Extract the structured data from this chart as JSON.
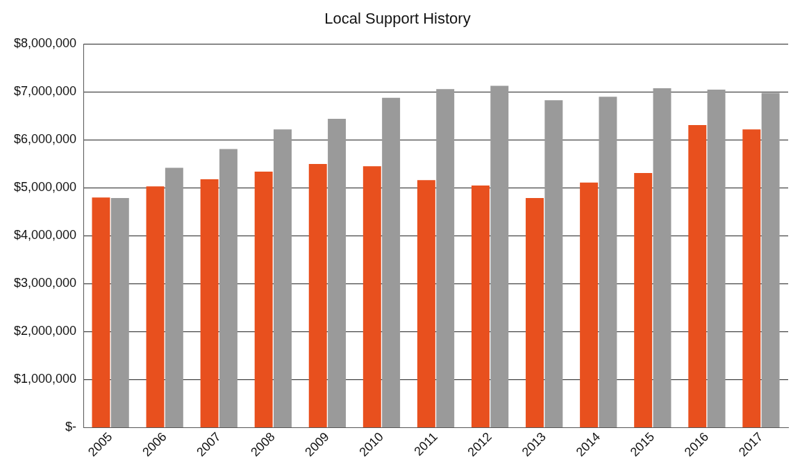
{
  "chart_data": {
    "type": "bar",
    "title": "Local Support History",
    "categories": [
      "2005",
      "2006",
      "2007",
      "2008",
      "2009",
      "2010",
      "2011",
      "2012",
      "2013",
      "2014",
      "2015",
      "2016",
      "2017"
    ],
    "series": [
      {
        "color": "#e8501e",
        "values": [
          4800000,
          5030000,
          5180000,
          5340000,
          5500000,
          5450000,
          5160000,
          5050000,
          4790000,
          5110000,
          5310000,
          6310000,
          6220000
        ]
      },
      {
        "color": "#9a9a9a",
        "values": [
          4790000,
          5420000,
          5810000,
          6220000,
          6440000,
          6880000,
          7060000,
          7130000,
          6830000,
          6900000,
          7080000,
          7050000,
          6980000
        ]
      }
    ],
    "ylim": [
      0,
      8000000
    ],
    "yticks": [
      {
        "value": 0,
        "label": "$-"
      },
      {
        "value": 1000000,
        "label": "$1,000,000"
      },
      {
        "value": 2000000,
        "label": "$2,000,000"
      },
      {
        "value": 3000000,
        "label": "$3,000,000"
      },
      {
        "value": 4000000,
        "label": "$4,000,000"
      },
      {
        "value": 5000000,
        "label": "$5,000,000"
      },
      {
        "value": 6000000,
        "label": "$6,000,000"
      },
      {
        "value": 7000000,
        "label": "$7,000,000"
      },
      {
        "value": 8000000,
        "label": "$8,000,000"
      }
    ],
    "grid": "y",
    "legend": false
  }
}
